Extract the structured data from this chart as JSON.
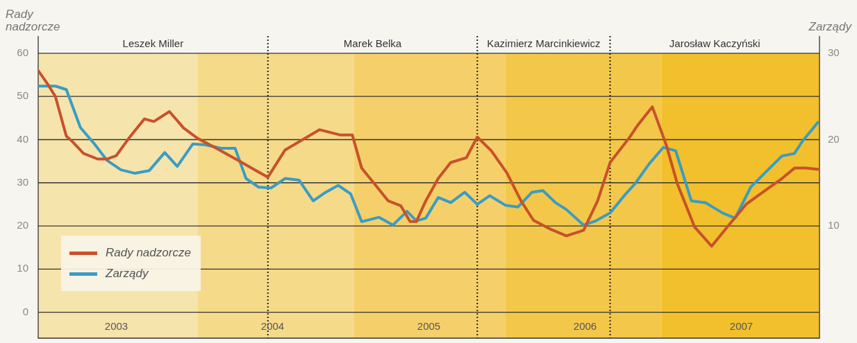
{
  "chart_data": {
    "type": "line",
    "xlabel": null,
    "ylabel": "Rady nadzorcze",
    "y2label": "Zarządy",
    "xlim": [
      2003,
      2008
    ],
    "xticks": [
      {
        "value": 2003.5,
        "label": "2003"
      },
      {
        "value": 2004.5,
        "label": "2004"
      },
      {
        "value": 2005.5,
        "label": "2005"
      },
      {
        "value": 2006.5,
        "label": "2006"
      },
      {
        "value": 2007.5,
        "label": "2007"
      }
    ],
    "ylim": [
      -6,
      64
    ],
    "yticks": [
      0,
      10,
      20,
      30,
      40,
      50,
      60
    ],
    "y2lim": [
      -3,
      32
    ],
    "y2ticks": [
      10,
      20,
      30
    ],
    "grid": "y",
    "legend": "bottom left",
    "line_style": "solid",
    "marker": "none",
    "bands": [
      {
        "axis": "x",
        "from": 2003,
        "to": 2004.02,
        "color": "#f6e4ad"
      },
      {
        "axis": "x",
        "from": 2004.02,
        "to": 2005.02,
        "color": "#f5da8a"
      },
      {
        "axis": "x",
        "from": 2005.02,
        "to": 2005.99,
        "color": "#f5d06a"
      },
      {
        "axis": "x",
        "from": 2005.99,
        "to": 2006.99,
        "color": "#f3c84a"
      },
      {
        "axis": "x",
        "from": 2006.99,
        "to": 2008,
        "color": "#f1c02c"
      }
    ],
    "ref_lines": [
      {
        "axis": "x",
        "value": 2004.47,
        "color": "#222222",
        "line_style": "dotted"
      },
      {
        "axis": "x",
        "value": 2005.81,
        "color": "#222222",
        "line_style": "dotted"
      },
      {
        "axis": "x",
        "value": 2006.66,
        "color": "#222222",
        "line_style": "dotted"
      }
    ],
    "annotations": [
      "Leszek Miller",
      "Marek Belka",
      "Kazimierz Marcinkiewicz",
      "Jarosław Kaczyński"
    ],
    "series": [
      {
        "name": "Rady nadzorcze",
        "color": "#c8512a",
        "axis": "y",
        "x": [
          2003,
          2003.06,
          2003.11,
          2003.18,
          2003.22,
          2003.29,
          2003.38,
          2003.44,
          2003.5,
          2003.58,
          2003.68,
          2003.74,
          2003.84,
          2003.93,
          2004.02,
          2004.13,
          2004.29,
          2004.4,
          2004.47,
          2004.58,
          2004.67,
          2004.8,
          2004.93,
          2005.01,
          2005.07,
          2005.16,
          2005.24,
          2005.32,
          2005.38,
          2005.42,
          2005.48,
          2005.56,
          2005.64,
          2005.74,
          2005.81,
          2005.9,
          2005.999,
          2006.09,
          2006.17,
          2006.27,
          2006.38,
          2006.49,
          2006.58,
          2006.66,
          2006.78,
          2006.84,
          2006.93,
          2007.02,
          2007.09,
          2007.2,
          2007.31,
          2007.42,
          2007.53,
          2007.64,
          2007.76,
          2007.84,
          2007.91,
          2008
        ],
        "values": [
          56,
          52.9,
          50,
          40.8,
          39.5,
          36.8,
          35.5,
          35.5,
          36.3,
          40.3,
          44.8,
          44.2,
          46.5,
          42.7,
          40.3,
          38.2,
          35,
          32.7,
          31.3,
          37.6,
          39.5,
          42.3,
          41.1,
          41.1,
          33.4,
          29.4,
          25.8,
          24.7,
          21,
          21,
          25.8,
          31,
          34.7,
          35.8,
          40.6,
          37.4,
          32.3,
          25.8,
          21.3,
          19.4,
          17.7,
          19,
          25.8,
          34.7,
          40.3,
          43.5,
          47.6,
          38.7,
          29.8,
          19.8,
          15.3,
          20.2,
          25,
          27.9,
          31,
          33.4,
          33.4,
          33.1
        ]
      },
      {
        "name": "Zarządy",
        "color": "#3a9cc4",
        "axis": "y2",
        "x": [
          2003,
          2003.11,
          2003.18,
          2003.27,
          2003.36,
          2003.44,
          2003.53,
          2003.62,
          2003.71,
          2003.81,
          2003.89,
          2003.99,
          2004.07,
          2004.17,
          2004.26,
          2004.33,
          2004.41,
          2004.49,
          2004.58,
          2004.67,
          2004.76,
          2004.84,
          2004.92,
          2005,
          2005.07,
          2005.18,
          2005.27,
          2005.36,
          2005.42,
          2005.48,
          2005.56,
          2005.64,
          2005.73,
          2005.81,
          2005.89,
          2005.99,
          2006.07,
          2006.16,
          2006.23,
          2006.31,
          2006.38,
          2006.49,
          2006.57,
          2006.66,
          2006.75,
          2006.82,
          2006.91,
          2007,
          2007.08,
          2007.18,
          2007.27,
          2007.38,
          2007.46,
          2007.56,
          2007.67,
          2007.76,
          2007.84,
          2007.89,
          2007.99
        ],
        "values": [
          26.2,
          26.2,
          25.8,
          21.4,
          19.5,
          17.6,
          16.5,
          16.1,
          16.4,
          18.5,
          16.9,
          19.5,
          19.4,
          19,
          19,
          15.5,
          14.5,
          14.4,
          15.5,
          15.3,
          12.9,
          13.9,
          14.7,
          13.7,
          10.5,
          11,
          10.1,
          11.7,
          10.6,
          10.9,
          13.3,
          12.7,
          13.9,
          12.5,
          13.5,
          12.4,
          12.2,
          13.9,
          14.1,
          12.7,
          11.9,
          10.1,
          10.6,
          11.5,
          13.5,
          14.9,
          17.2,
          19.1,
          18.7,
          12.9,
          12.7,
          11.5,
          10.9,
          14.5,
          16.5,
          18.1,
          18.4,
          19.8,
          22
        ]
      }
    ]
  }
}
